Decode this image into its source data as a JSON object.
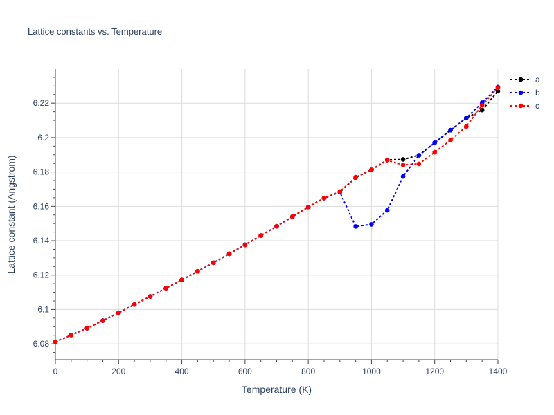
{
  "chart_data": {
    "type": "line",
    "title": "Lattice constants vs. Temperature",
    "xlabel": "Temperature (K)",
    "ylabel": "Lattice constant (Angstrom)",
    "xlim": [
      0,
      1400
    ],
    "ylim": [
      6.0708,
      6.2398
    ],
    "grid": true,
    "legend_position": "top-right",
    "x_ticks": [
      0,
      200,
      400,
      600,
      800,
      1000,
      1200,
      1400
    ],
    "x_tick_labels": [
      "0",
      "200",
      "400",
      "600",
      "800",
      "1000",
      "1200",
      "1400"
    ],
    "y_ticks": [
      6.08,
      6.1,
      6.12,
      6.14,
      6.16,
      6.18,
      6.2,
      6.22
    ],
    "y_tick_labels": [
      "6.08",
      "6.1",
      "6.12",
      "6.14",
      "6.16",
      "6.18",
      "6.2",
      "6.22"
    ],
    "x": [
      0,
      50,
      100,
      150,
      200,
      250,
      300,
      350,
      400,
      450,
      500,
      550,
      600,
      650,
      700,
      750,
      800,
      850,
      900,
      950,
      1000,
      1050,
      1100,
      1150,
      1200,
      1250,
      1300,
      1350,
      1400
    ],
    "series": [
      {
        "name": "a",
        "color": "#000000",
        "values": [
          6.0812,
          6.0851,
          6.0891,
          6.0935,
          6.0981,
          6.1029,
          6.1076,
          6.1124,
          6.1172,
          6.1222,
          6.1272,
          6.1324,
          6.1376,
          6.143,
          6.1484,
          6.154,
          6.1596,
          6.1648,
          6.1683,
          6.1768,
          6.1813,
          6.187,
          6.1873,
          6.1897,
          6.197,
          6.2043,
          6.2114,
          6.216,
          6.227
        ]
      },
      {
        "name": "b",
        "color": "#0000ff",
        "values": [
          6.0812,
          6.0851,
          6.0891,
          6.0935,
          6.0981,
          6.1029,
          6.1076,
          6.1124,
          6.1172,
          6.1222,
          6.1272,
          6.1324,
          6.1376,
          6.143,
          6.1484,
          6.154,
          6.1596,
          6.1648,
          6.1683,
          6.1483,
          6.1495,
          6.1577,
          6.1774,
          6.1897,
          6.197,
          6.2043,
          6.2114,
          6.2203,
          6.2294
        ]
      },
      {
        "name": "c",
        "color": "#ff0000",
        "values": [
          6.0812,
          6.0851,
          6.0891,
          6.0935,
          6.0981,
          6.1029,
          6.1076,
          6.1124,
          6.1172,
          6.1222,
          6.1272,
          6.1324,
          6.1376,
          6.143,
          6.1484,
          6.154,
          6.1596,
          6.1648,
          6.1686,
          6.177,
          6.1812,
          6.1868,
          6.1841,
          6.1847,
          6.1915,
          6.1985,
          6.2065,
          6.2188,
          6.229
        ]
      }
    ]
  }
}
